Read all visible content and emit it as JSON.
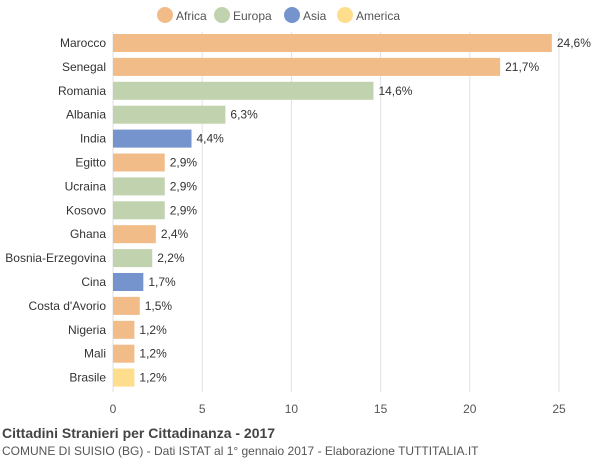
{
  "chart_data": {
    "type": "bar",
    "orientation": "horizontal",
    "title": "Cittadini Stranieri per Cittadinanza - 2017",
    "subtitle": "COMUNE DI SUISIO (BG) - Dati ISTAT al 1° gennaio 2017 - Elaborazione TUTTITALIA.IT",
    "legend": {
      "position": "top",
      "entries": [
        {
          "label": "Africa",
          "color": "#f2bc88"
        },
        {
          "label": "Europa",
          "color": "#c0d3ae"
        },
        {
          "label": "Asia",
          "color": "#7593cc"
        },
        {
          "label": "America",
          "color": "#fedd8c"
        }
      ]
    },
    "categories": [
      "Marocco",
      "Senegal",
      "Romania",
      "Albania",
      "India",
      "Egitto",
      "Ucraina",
      "Kosovo",
      "Ghana",
      "Bosnia-Erzegovina",
      "Cina",
      "Costa d'Avorio",
      "Nigeria",
      "Mali",
      "Brasile"
    ],
    "values": [
      24.6,
      21.7,
      14.6,
      6.3,
      4.4,
      2.9,
      2.9,
      2.9,
      2.4,
      2.2,
      1.7,
      1.5,
      1.2,
      1.2,
      1.2
    ],
    "value_labels": [
      "24,6%",
      "21,7%",
      "14,6%",
      "6,3%",
      "4,4%",
      "2,9%",
      "2,9%",
      "2,9%",
      "2,4%",
      "2,2%",
      "1,7%",
      "1,5%",
      "1,2%",
      "1,2%",
      "1,2%"
    ],
    "continents": [
      "Africa",
      "Africa",
      "Europa",
      "Europa",
      "Asia",
      "Africa",
      "Europa",
      "Europa",
      "Africa",
      "Europa",
      "Asia",
      "Africa",
      "Africa",
      "Africa",
      "America"
    ],
    "xlim": [
      0,
      25
    ],
    "xticks": [
      0,
      5,
      10,
      15,
      20,
      25
    ],
    "grid": true
  }
}
